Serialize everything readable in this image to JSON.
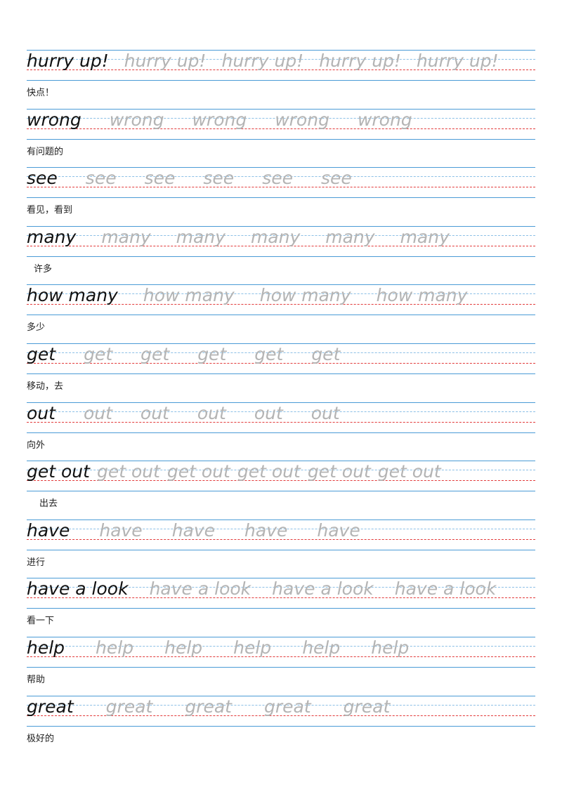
{
  "rows": [
    {
      "word": "hurry up!",
      "trace_count": 4,
      "meaning": "快点！"
    },
    {
      "word": "wrong",
      "trace_count": 4,
      "meaning": "有问题的"
    },
    {
      "word": "see",
      "trace_count": 5,
      "meaning": "看见，看到"
    },
    {
      "word": "many",
      "trace_count": 5,
      "meaning": "许多"
    },
    {
      "word": "how many",
      "trace_count": 3,
      "meaning": "多少"
    },
    {
      "word": "get",
      "trace_count": 5,
      "meaning": "移动，去"
    },
    {
      "word": "out",
      "trace_count": 5,
      "meaning": "向外"
    },
    {
      "word": "get out",
      "trace_count": 5,
      "meaning": "出去"
    },
    {
      "word": "have",
      "trace_count": 4,
      "meaning": "进行"
    },
    {
      "word": "have a look",
      "trace_count": 3,
      "meaning": "看一下"
    },
    {
      "word": "help",
      "trace_count": 5,
      "meaning": "帮助"
    },
    {
      "word": "great",
      "trace_count": 4,
      "meaning": "极好的"
    }
  ]
}
